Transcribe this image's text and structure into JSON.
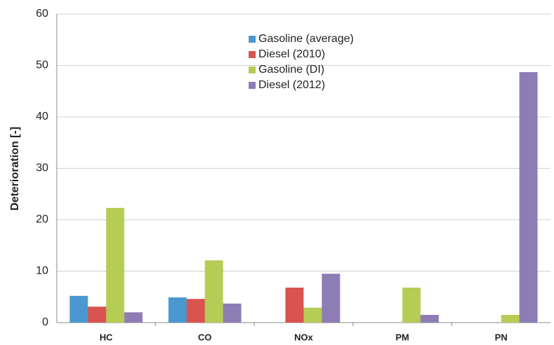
{
  "chart_data": {
    "type": "bar",
    "y_label": "Deterioration [-]",
    "categories": [
      "HC",
      "CO",
      "NOx",
      "PM",
      "PN"
    ],
    "series": [
      {
        "name": "Gasoline (average)",
        "color": "#4a98cf",
        "values": [
          5.2,
          4.9,
          null,
          null,
          null
        ]
      },
      {
        "name": "Diesel (2010)",
        "color": "#d9534f",
        "values": [
          3.1,
          4.6,
          6.8,
          null,
          null
        ]
      },
      {
        "name": "Gasoline (DI)",
        "color": "#b5cc55",
        "values": [
          22.3,
          12.1,
          2.9,
          6.8,
          1.5
        ]
      },
      {
        "name": "Diesel (2012)",
        "color": "#8e7cb5",
        "values": [
          2.0,
          3.7,
          9.5,
          1.5,
          48.7
        ]
      }
    ],
    "ylim": [
      0,
      60
    ],
    "yticks": [
      0,
      10,
      20,
      30,
      40,
      50,
      60
    ],
    "grid": true,
    "legend": "top"
  }
}
